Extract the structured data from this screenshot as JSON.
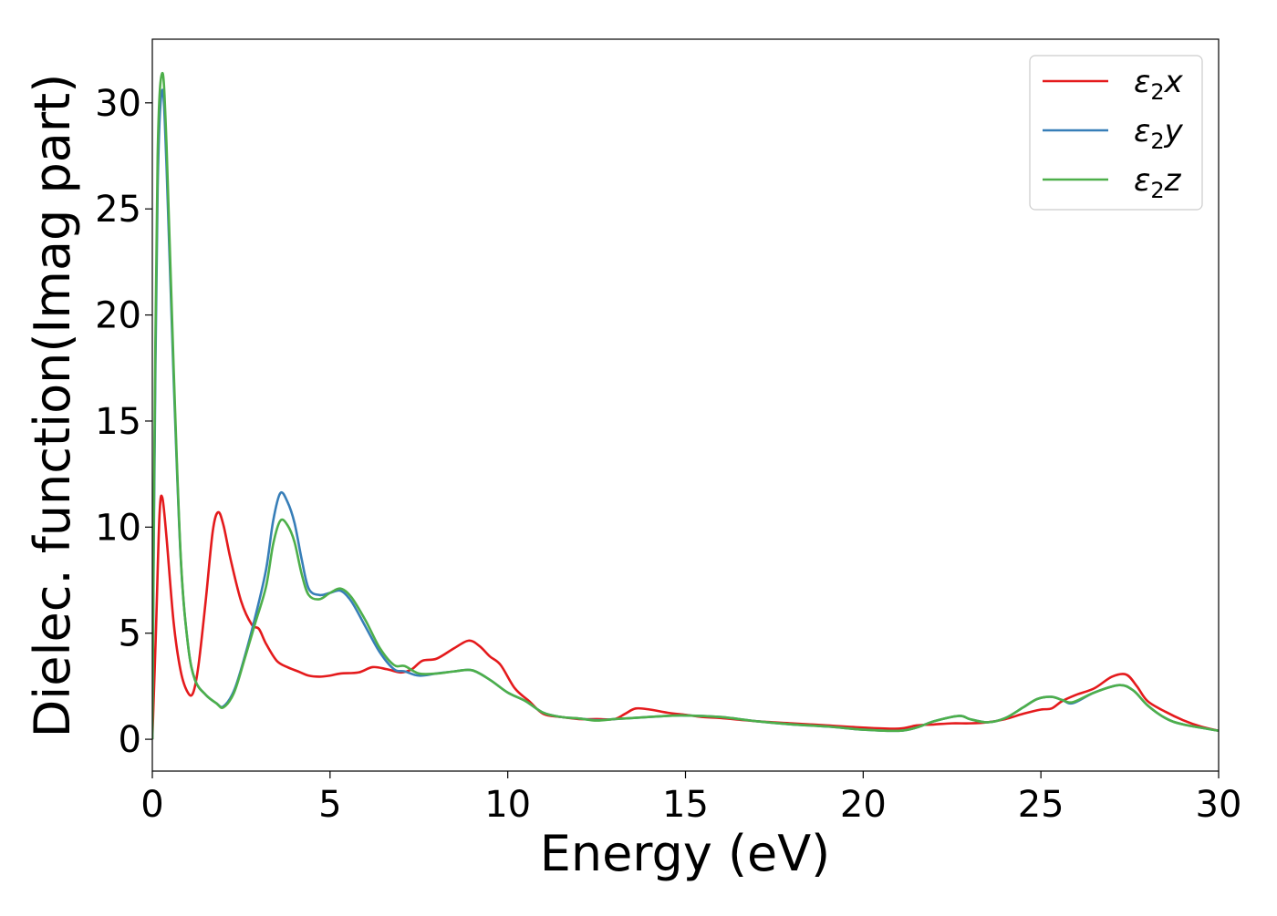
{
  "chart_data": {
    "type": "line",
    "xlabel": "Energy (eV)",
    "ylabel": "Dielec. function(Imag part)",
    "xlim": [
      0,
      30
    ],
    "ylim": [
      -1.5,
      33
    ],
    "xticks": [
      0,
      5,
      10,
      15,
      20,
      25,
      30
    ],
    "yticks": [
      0,
      5,
      10,
      15,
      20,
      25,
      30
    ],
    "x_tick_labels": [
      "0",
      "5",
      "10",
      "15",
      "20",
      "25",
      "30"
    ],
    "y_tick_labels": [
      "0",
      "5",
      "10",
      "15",
      "20",
      "25",
      "30"
    ],
    "grid": false,
    "legend_position": "top-right",
    "series": [
      {
        "name": "ε2x",
        "legend_base": "ε",
        "legend_sub": "2",
        "legend_suffix": "x",
        "color": "#e41a1c",
        "points": [
          [
            0,
            0
          ],
          [
            0.1,
            5
          ],
          [
            0.2,
            10.5
          ],
          [
            0.28,
            11.4
          ],
          [
            0.4,
            9.5
          ],
          [
            0.6,
            5.5
          ],
          [
            0.8,
            3.2
          ],
          [
            1.0,
            2.2
          ],
          [
            1.15,
            2.2
          ],
          [
            1.3,
            3.5
          ],
          [
            1.5,
            6.5
          ],
          [
            1.7,
            9.8
          ],
          [
            1.85,
            10.7
          ],
          [
            2.0,
            10.1
          ],
          [
            2.2,
            8.5
          ],
          [
            2.5,
            6.5
          ],
          [
            2.8,
            5.4
          ],
          [
            3.0,
            5.2
          ],
          [
            3.2,
            4.5
          ],
          [
            3.5,
            3.7
          ],
          [
            3.8,
            3.4
          ],
          [
            4.1,
            3.2
          ],
          [
            4.4,
            3.0
          ],
          [
            4.7,
            2.95
          ],
          [
            5.0,
            3.0
          ],
          [
            5.3,
            3.1
          ],
          [
            5.8,
            3.15
          ],
          [
            6.2,
            3.4
          ],
          [
            6.6,
            3.3
          ],
          [
            7.0,
            3.15
          ],
          [
            7.3,
            3.3
          ],
          [
            7.6,
            3.7
          ],
          [
            8.0,
            3.8
          ],
          [
            8.5,
            4.3
          ],
          [
            8.9,
            4.65
          ],
          [
            9.2,
            4.4
          ],
          [
            9.5,
            3.9
          ],
          [
            9.8,
            3.5
          ],
          [
            10.2,
            2.4
          ],
          [
            10.6,
            1.8
          ],
          [
            11.0,
            1.2
          ],
          [
            11.5,
            1.05
          ],
          [
            12.0,
            0.95
          ],
          [
            12.5,
            0.95
          ],
          [
            13.0,
            0.95
          ],
          [
            13.3,
            1.2
          ],
          [
            13.6,
            1.45
          ],
          [
            14.0,
            1.4
          ],
          [
            14.5,
            1.25
          ],
          [
            15.0,
            1.15
          ],
          [
            15.5,
            1.05
          ],
          [
            16.0,
            1.0
          ],
          [
            17.0,
            0.85
          ],
          [
            18.0,
            0.75
          ],
          [
            19.0,
            0.65
          ],
          [
            20.0,
            0.55
          ],
          [
            21.0,
            0.5
          ],
          [
            21.5,
            0.65
          ],
          [
            22.0,
            0.7
          ],
          [
            22.5,
            0.75
          ],
          [
            23.0,
            0.75
          ],
          [
            23.5,
            0.8
          ],
          [
            24.0,
            0.95
          ],
          [
            24.5,
            1.2
          ],
          [
            25.0,
            1.4
          ],
          [
            25.3,
            1.45
          ],
          [
            25.6,
            1.8
          ],
          [
            26.0,
            2.1
          ],
          [
            26.5,
            2.4
          ],
          [
            27.0,
            2.95
          ],
          [
            27.4,
            3.05
          ],
          [
            27.7,
            2.5
          ],
          [
            28.0,
            1.8
          ],
          [
            28.5,
            1.3
          ],
          [
            29.0,
            0.9
          ],
          [
            29.5,
            0.6
          ],
          [
            30.0,
            0.4
          ]
        ]
      },
      {
        "name": "ε2y",
        "legend_base": "ε",
        "legend_sub": "2",
        "legend_suffix": "y",
        "color": "#377eb8",
        "points": [
          [
            0,
            0
          ],
          [
            0.05,
            11
          ],
          [
            0.15,
            26
          ],
          [
            0.28,
            30.6
          ],
          [
            0.4,
            27
          ],
          [
            0.6,
            17
          ],
          [
            0.8,
            8.5
          ],
          [
            1.0,
            4.5
          ],
          [
            1.2,
            2.8
          ],
          [
            1.5,
            2.1
          ],
          [
            1.8,
            1.7
          ],
          [
            2.0,
            1.55
          ],
          [
            2.3,
            2.3
          ],
          [
            2.6,
            3.9
          ],
          [
            2.9,
            5.8
          ],
          [
            3.2,
            8.0
          ],
          [
            3.4,
            10.3
          ],
          [
            3.6,
            11.6
          ],
          [
            3.8,
            11.2
          ],
          [
            4.0,
            10.2
          ],
          [
            4.2,
            8.5
          ],
          [
            4.4,
            7.1
          ],
          [
            4.7,
            6.8
          ],
          [
            5.0,
            6.9
          ],
          [
            5.3,
            7.0
          ],
          [
            5.6,
            6.5
          ],
          [
            6.0,
            5.3
          ],
          [
            6.4,
            4.1
          ],
          [
            6.8,
            3.3
          ],
          [
            7.1,
            3.2
          ],
          [
            7.5,
            3.0
          ],
          [
            8.0,
            3.1
          ],
          [
            8.5,
            3.2
          ],
          [
            9.0,
            3.25
          ],
          [
            9.5,
            2.8
          ],
          [
            10.0,
            2.2
          ],
          [
            10.5,
            1.8
          ],
          [
            11.0,
            1.25
          ],
          [
            11.5,
            1.05
          ],
          [
            12.0,
            0.98
          ],
          [
            12.5,
            0.9
          ],
          [
            13.0,
            0.95
          ],
          [
            13.5,
            1.0
          ],
          [
            14.5,
            1.1
          ],
          [
            15.0,
            1.12
          ],
          [
            16.0,
            1.05
          ],
          [
            17.0,
            0.85
          ],
          [
            18.0,
            0.7
          ],
          [
            19.0,
            0.6
          ],
          [
            20.0,
            0.45
          ],
          [
            21.0,
            0.4
          ],
          [
            21.5,
            0.55
          ],
          [
            22.0,
            0.85
          ],
          [
            22.7,
            1.1
          ],
          [
            23.0,
            0.95
          ],
          [
            23.5,
            0.8
          ],
          [
            24.0,
            1.0
          ],
          [
            24.5,
            1.5
          ],
          [
            24.9,
            1.9
          ],
          [
            25.3,
            2.0
          ],
          [
            25.6,
            1.85
          ],
          [
            25.9,
            1.7
          ],
          [
            26.5,
            2.2
          ],
          [
            27.2,
            2.55
          ],
          [
            27.6,
            2.3
          ],
          [
            28.0,
            1.6
          ],
          [
            28.5,
            1.0
          ],
          [
            29.0,
            0.7
          ],
          [
            30.0,
            0.4
          ]
        ]
      },
      {
        "name": "ε2z",
        "legend_base": "ε",
        "legend_sub": "2",
        "legend_suffix": "z",
        "color": "#4daf4a",
        "points": [
          [
            0,
            0
          ],
          [
            0.05,
            12
          ],
          [
            0.15,
            27.5
          ],
          [
            0.28,
            31.4
          ],
          [
            0.4,
            28
          ],
          [
            0.6,
            17.5
          ],
          [
            0.8,
            8.6
          ],
          [
            1.0,
            4.5
          ],
          [
            1.2,
            2.8
          ],
          [
            1.5,
            2.1
          ],
          [
            1.8,
            1.7
          ],
          [
            2.0,
            1.5
          ],
          [
            2.3,
            2.2
          ],
          [
            2.6,
            3.8
          ],
          [
            2.9,
            5.5
          ],
          [
            3.2,
            7.2
          ],
          [
            3.4,
            9.2
          ],
          [
            3.6,
            10.3
          ],
          [
            3.8,
            10.1
          ],
          [
            4.0,
            9.3
          ],
          [
            4.2,
            7.8
          ],
          [
            4.4,
            6.8
          ],
          [
            4.7,
            6.6
          ],
          [
            5.0,
            6.9
          ],
          [
            5.3,
            7.1
          ],
          [
            5.6,
            6.7
          ],
          [
            6.0,
            5.6
          ],
          [
            6.4,
            4.3
          ],
          [
            6.8,
            3.5
          ],
          [
            7.1,
            3.45
          ],
          [
            7.5,
            3.1
          ],
          [
            8.0,
            3.1
          ],
          [
            8.5,
            3.2
          ],
          [
            9.0,
            3.25
          ],
          [
            9.5,
            2.8
          ],
          [
            10.0,
            2.2
          ],
          [
            10.5,
            1.8
          ],
          [
            11.0,
            1.25
          ],
          [
            11.5,
            1.05
          ],
          [
            12.0,
            0.98
          ],
          [
            12.5,
            0.88
          ],
          [
            13.0,
            0.95
          ],
          [
            13.5,
            1.0
          ],
          [
            14.5,
            1.1
          ],
          [
            15.0,
            1.12
          ],
          [
            16.0,
            1.05
          ],
          [
            17.0,
            0.85
          ],
          [
            18.0,
            0.7
          ],
          [
            19.0,
            0.6
          ],
          [
            20.0,
            0.45
          ],
          [
            21.0,
            0.4
          ],
          [
            21.5,
            0.55
          ],
          [
            22.0,
            0.85
          ],
          [
            22.7,
            1.1
          ],
          [
            23.0,
            0.95
          ],
          [
            23.5,
            0.8
          ],
          [
            24.0,
            1.0
          ],
          [
            24.5,
            1.5
          ],
          [
            24.9,
            1.9
          ],
          [
            25.3,
            2.0
          ],
          [
            25.6,
            1.85
          ],
          [
            25.9,
            1.75
          ],
          [
            26.5,
            2.2
          ],
          [
            27.2,
            2.55
          ],
          [
            27.6,
            2.3
          ],
          [
            28.0,
            1.6
          ],
          [
            28.5,
            1.0
          ],
          [
            29.0,
            0.7
          ],
          [
            30.0,
            0.4
          ]
        ]
      }
    ]
  }
}
